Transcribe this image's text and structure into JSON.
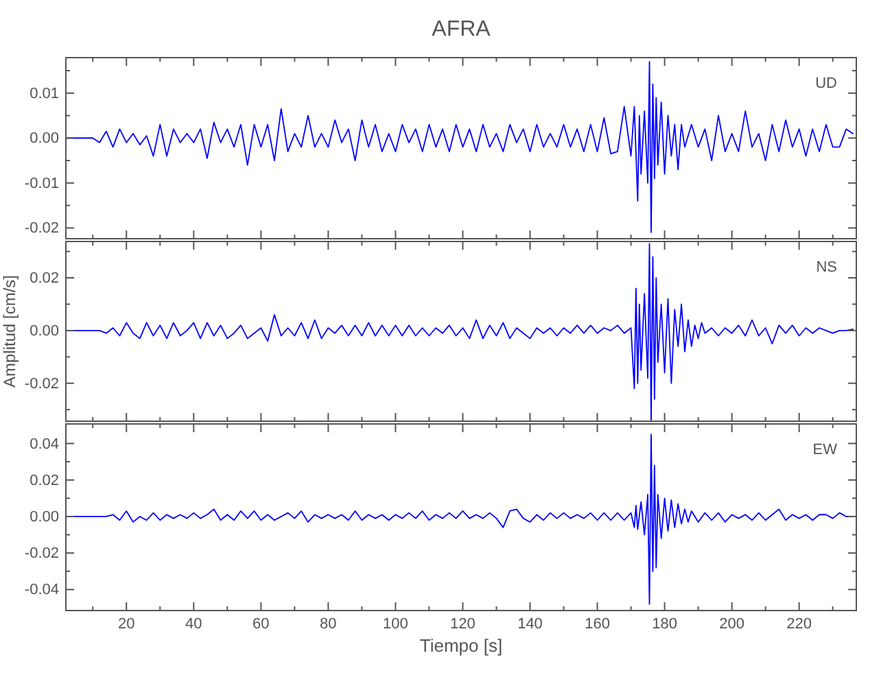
{
  "chart_data": [
    {
      "type": "line",
      "title": "AFRA",
      "xlim": [
        2,
        237
      ],
      "ylim": [
        -0.0224,
        0.0179
      ],
      "tick_labels": "y",
      "xticks": [
        {
          "value": 10,
          "label": null
        },
        20,
        {
          "value": 30,
          "label": null
        },
        40,
        {
          "value": 50,
          "label": null
        },
        60,
        {
          "value": 70,
          "label": null
        },
        80,
        {
          "value": 90,
          "label": null
        },
        100,
        {
          "value": 110,
          "label": null
        },
        120,
        {
          "value": 130,
          "label": null
        },
        140,
        {
          "value": 150,
          "label": null
        },
        160,
        {
          "value": 170,
          "label": null
        },
        180,
        {
          "value": 190,
          "label": null
        },
        200,
        {
          "value": 210,
          "label": null
        },
        220,
        {
          "value": 230,
          "label": null
        }
      ],
      "yticks": [
        {
          "value": 0.015,
          "label": null
        },
        0.01,
        {
          "value": 0.005,
          "label": null
        },
        {
          "value": 0,
          "label": "0.00"
        },
        {
          "value": -0.005,
          "label": null
        },
        -0.01,
        {
          "value": -0.015,
          "label": null
        },
        -0.02
      ],
      "series": [
        {
          "name": "UD",
          "color": "#0000ff",
          "x": [
            2,
            10,
            12,
            14,
            16,
            18,
            20,
            22,
            24,
            26,
            28,
            30,
            32,
            34,
            36,
            38,
            40,
            42,
            44,
            46,
            48,
            50,
            52,
            54,
            56,
            58,
            60,
            62,
            64,
            66,
            68,
            70,
            72,
            74,
            76,
            78,
            80,
            82,
            84,
            86,
            88,
            90,
            92,
            94,
            96,
            98,
            100,
            102,
            104,
            106,
            108,
            110,
            112,
            114,
            116,
            118,
            120,
            122,
            124,
            126,
            128,
            130,
            132,
            134,
            136,
            138,
            140,
            142,
            144,
            146,
            148,
            150,
            152,
            154,
            156,
            158,
            160,
            162,
            164,
            166,
            168,
            170,
            171,
            172,
            172.5,
            173,
            174,
            175,
            175.5,
            176,
            176.5,
            177,
            177.5,
            178,
            179,
            180,
            181,
            182,
            183,
            184,
            185,
            186,
            188,
            190,
            192,
            194,
            196,
            198,
            200,
            202,
            204,
            206,
            208,
            210,
            212,
            214,
            216,
            218,
            220,
            222,
            224,
            226,
            228,
            230,
            232,
            234,
            236
          ],
          "values": [
            0,
            0,
            -0.001,
            0.0015,
            -0.002,
            0.002,
            -0.001,
            0.001,
            -0.0015,
            0.0005,
            -0.004,
            0.003,
            -0.004,
            0.002,
            -0.001,
            0.001,
            -0.001,
            0.002,
            -0.0045,
            0.0035,
            -0.001,
            0.002,
            -0.002,
            0.003,
            -0.006,
            0.003,
            -0.002,
            0.003,
            -0.005,
            0.0065,
            -0.003,
            0.001,
            -0.002,
            0.005,
            -0.002,
            0.001,
            -0.002,
            0.004,
            -0.001,
            0.002,
            -0.005,
            0.004,
            -0.002,
            0.003,
            -0.003,
            0.001,
            -0.003,
            0.003,
            -0.001,
            0.002,
            -0.003,
            0.003,
            -0.002,
            0.002,
            -0.003,
            0.003,
            -0.002,
            0.002,
            -0.003,
            0.003,
            -0.002,
            0.001,
            -0.003,
            0.003,
            -0.001,
            0.002,
            -0.003,
            0.003,
            -0.002,
            0.001,
            -0.002,
            0.003,
            -0.002,
            0.002,
            -0.003,
            0.003,
            -0.003,
            0.0045,
            -0.0035,
            -0.003,
            0.007,
            -0.004,
            0.007,
            -0.014,
            0.005,
            -0.008,
            0.006,
            -0.01,
            0.017,
            -0.021,
            0.012,
            -0.009,
            0.009,
            -0.006,
            0.008,
            -0.008,
            0.005,
            -0.004,
            0.003,
            -0.007,
            0.003,
            -0.002,
            0.003,
            -0.002,
            0.002,
            -0.005,
            0.005,
            -0.003,
            0.001,
            -0.003,
            0.006,
            -0.002,
            0.001,
            -0.005,
            0.003,
            -0.003,
            0.004,
            -0.002,
            0.002,
            -0.004,
            0.002,
            -0.003,
            0.003,
            -0.002,
            -0.002,
            0.002,
            0.001
          ]
        }
      ]
    },
    {
      "type": "line",
      "ylabel": "Amplitud [cm/s]",
      "xlim": [
        2,
        237
      ],
      "ylim": [
        -0.0344,
        0.0338
      ],
      "tick_labels": "y",
      "xticks": [
        {
          "value": 10,
          "label": null
        },
        20,
        {
          "value": 30,
          "label": null
        },
        40,
        {
          "value": 50,
          "label": null
        },
        60,
        {
          "value": 70,
          "label": null
        },
        80,
        {
          "value": 90,
          "label": null
        },
        100,
        {
          "value": 110,
          "label": null
        },
        120,
        {
          "value": 130,
          "label": null
        },
        140,
        {
          "value": 150,
          "label": null
        },
        160,
        {
          "value": 170,
          "label": null
        },
        180,
        {
          "value": 190,
          "label": null
        },
        200,
        {
          "value": 210,
          "label": null
        },
        220,
        {
          "value": 230,
          "label": null
        }
      ],
      "yticks": [
        {
          "value": 0.03,
          "label": null
        },
        0.02,
        {
          "value": 0.01,
          "label": null
        },
        {
          "value": 0,
          "label": "0.00"
        },
        {
          "value": -0.01,
          "label": null
        },
        -0.02,
        {
          "value": -0.03,
          "label": null
        }
      ],
      "series": [
        {
          "name": "NS",
          "color": "#0000ff",
          "x": [
            2,
            12,
            14,
            16,
            18,
            20,
            22,
            24,
            26,
            28,
            30,
            32,
            34,
            36,
            38,
            40,
            42,
            44,
            46,
            48,
            50,
            52,
            54,
            56,
            58,
            60,
            62,
            64,
            66,
            68,
            70,
            72,
            74,
            76,
            78,
            80,
            82,
            84,
            86,
            88,
            90,
            92,
            94,
            96,
            98,
            100,
            102,
            104,
            106,
            108,
            110,
            112,
            114,
            116,
            118,
            120,
            122,
            124,
            126,
            128,
            130,
            132,
            134,
            136,
            138,
            140,
            142,
            144,
            146,
            148,
            150,
            152,
            154,
            156,
            158,
            160,
            162,
            164,
            166,
            168,
            170,
            171,
            171.5,
            172,
            172.5,
            173,
            174,
            175,
            175.5,
            176,
            176.5,
            177,
            177.5,
            178,
            179,
            180,
            181,
            182,
            183,
            184,
            185,
            186,
            187,
            188,
            189,
            190,
            191,
            192,
            194,
            196,
            198,
            200,
            202,
            204,
            206,
            208,
            210,
            212,
            214,
            216,
            218,
            220,
            222,
            224,
            226,
            228,
            230,
            232,
            234,
            236
          ],
          "values": [
            0,
            0,
            -0.001,
            0.001,
            -0.002,
            0.003,
            -0.001,
            -0.003,
            0.003,
            -0.002,
            0.002,
            -0.003,
            0.003,
            -0.002,
            0,
            0.003,
            -0.003,
            0.003,
            -0.002,
            0.002,
            -0.003,
            -0.001,
            0.002,
            -0.003,
            -0.001,
            0.001,
            -0.004,
            0.006,
            -0.002,
            0.001,
            -0.002,
            0.003,
            -0.003,
            0.004,
            -0.003,
            0.001,
            -0.001,
            0.002,
            -0.002,
            0.002,
            -0.002,
            0.003,
            -0.002,
            0.002,
            -0.002,
            0.002,
            -0.002,
            0.002,
            -0.002,
            0.001,
            -0.002,
            0.001,
            -0.001,
            0.002,
            -0.002,
            0.001,
            -0.003,
            0.004,
            -0.003,
            0.002,
            -0.002,
            0.003,
            -0.003,
            0.001,
            -0.001,
            -0.003,
            0.001,
            -0.001,
            0.001,
            -0.002,
            0.001,
            -0.001,
            0.002,
            -0.001,
            0.002,
            -0.001,
            0.001,
            0,
            0.002,
            -0.001,
            0.001,
            -0.022,
            0.016,
            -0.02,
            0.01,
            -0.015,
            0.014,
            -0.018,
            0.033,
            -0.034,
            0.028,
            -0.026,
            0.02,
            -0.012,
            0.01,
            -0.016,
            0.012,
            -0.02,
            0.008,
            -0.006,
            0.01,
            -0.008,
            0.004,
            -0.006,
            0.002,
            -0.003,
            0.003,
            -0.001,
            0.001,
            -0.002,
            0.001,
            -0.001,
            0.002,
            -0.002,
            0.004,
            -0.002,
            0.001,
            -0.005,
            0.002,
            -0.001,
            0.002,
            -0.002,
            0.001,
            -0.001,
            0.001,
            0,
            -0.001,
            0,
            0,
            0.0005
          ]
        }
      ]
    },
    {
      "type": "line",
      "xlabel": "Tiempo [s]",
      "xlim": [
        2,
        237
      ],
      "ylim": [
        -0.0515,
        0.0507
      ],
      "xticks": [
        {
          "value": 10,
          "label": null
        },
        20,
        {
          "value": 30,
          "label": null
        },
        40,
        {
          "value": 50,
          "label": null
        },
        60,
        {
          "value": 70,
          "label": null
        },
        80,
        {
          "value": 90,
          "label": null
        },
        100,
        {
          "value": 110,
          "label": null
        },
        120,
        {
          "value": 130,
          "label": null
        },
        140,
        {
          "value": 150,
          "label": null
        },
        160,
        {
          "value": 170,
          "label": null
        },
        180,
        {
          "value": 190,
          "label": null
        },
        200,
        {
          "value": 210,
          "label": null
        },
        220,
        {
          "value": 230,
          "label": null
        }
      ],
      "yticks": [
        0.04,
        {
          "value": 0.03,
          "label": null
        },
        0.02,
        {
          "value": 0.01,
          "label": null
        },
        {
          "value": 0,
          "label": "0.00"
        },
        {
          "value": -0.01,
          "label": null
        },
        -0.02,
        {
          "value": -0.03,
          "label": null
        },
        -0.04
      ],
      "series": [
        {
          "name": "EW",
          "color": "#0000ff",
          "x": [
            2,
            14,
            16,
            18,
            20,
            22,
            24,
            26,
            28,
            30,
            32,
            34,
            36,
            38,
            40,
            42,
            44,
            46,
            48,
            50,
            52,
            54,
            56,
            58,
            60,
            62,
            64,
            66,
            68,
            70,
            72,
            74,
            76,
            78,
            80,
            82,
            84,
            86,
            88,
            90,
            92,
            94,
            96,
            98,
            100,
            102,
            104,
            106,
            108,
            110,
            112,
            114,
            116,
            118,
            120,
            122,
            124,
            126,
            128,
            130,
            132,
            134,
            136,
            138,
            140,
            142,
            144,
            146,
            148,
            150,
            152,
            154,
            156,
            158,
            160,
            162,
            164,
            166,
            168,
            170,
            171,
            171.5,
            172,
            173,
            174,
            175,
            175.5,
            176,
            176.5,
            177,
            177.5,
            178,
            179,
            180,
            181,
            182,
            183,
            184,
            185,
            186,
            187,
            188,
            190,
            192,
            194,
            196,
            198,
            200,
            202,
            204,
            206,
            208,
            210,
            212,
            214,
            216,
            218,
            220,
            222,
            224,
            226,
            228,
            230,
            232,
            234,
            236
          ],
          "values": [
            0,
            0,
            0.001,
            -0.002,
            0.003,
            -0.003,
            0,
            -0.002,
            0.002,
            -0.002,
            0.001,
            -0.001,
            0.001,
            -0.001,
            0.002,
            -0.001,
            0.001,
            0.004,
            -0.002,
            0.001,
            -0.002,
            0.003,
            -0.001,
            0.003,
            -0.002,
            0.001,
            -0.002,
            0,
            0.002,
            -0.001,
            0.003,
            -0.003,
            0.001,
            -0.001,
            0.001,
            -0.001,
            0.001,
            -0.002,
            0.003,
            -0.002,
            0.001,
            -0.001,
            0.001,
            -0.002,
            0.001,
            -0.001,
            0.002,
            -0.001,
            0.003,
            -0.002,
            0.001,
            -0.001,
            0.002,
            -0.001,
            0.003,
            -0.001,
            0.001,
            -0.001,
            0.002,
            -0.001,
            -0.006,
            0.003,
            0.004,
            -0.001,
            -0.003,
            0.001,
            -0.002,
            0.002,
            -0.001,
            0.002,
            -0.001,
            0.001,
            -0.001,
            0.002,
            -0.002,
            0.002,
            -0.002,
            0.002,
            -0.002,
            0.002,
            -0.006,
            0.006,
            -0.007,
            0.008,
            -0.01,
            0.012,
            -0.048,
            0.045,
            -0.03,
            0.028,
            -0.028,
            0.012,
            -0.012,
            0.01,
            -0.008,
            0.009,
            -0.006,
            0.007,
            -0.004,
            0.004,
            -0.003,
            0.003,
            -0.003,
            0.002,
            -0.002,
            0.002,
            -0.003,
            0.001,
            -0.001,
            0.001,
            -0.002,
            0.002,
            -0.002,
            0.001,
            0.004,
            -0.002,
            0.001,
            -0.001,
            0.001,
            -0.002,
            0.001,
            0.001,
            -0.001,
            0.002,
            0,
            0
          ]
        }
      ]
    }
  ]
}
